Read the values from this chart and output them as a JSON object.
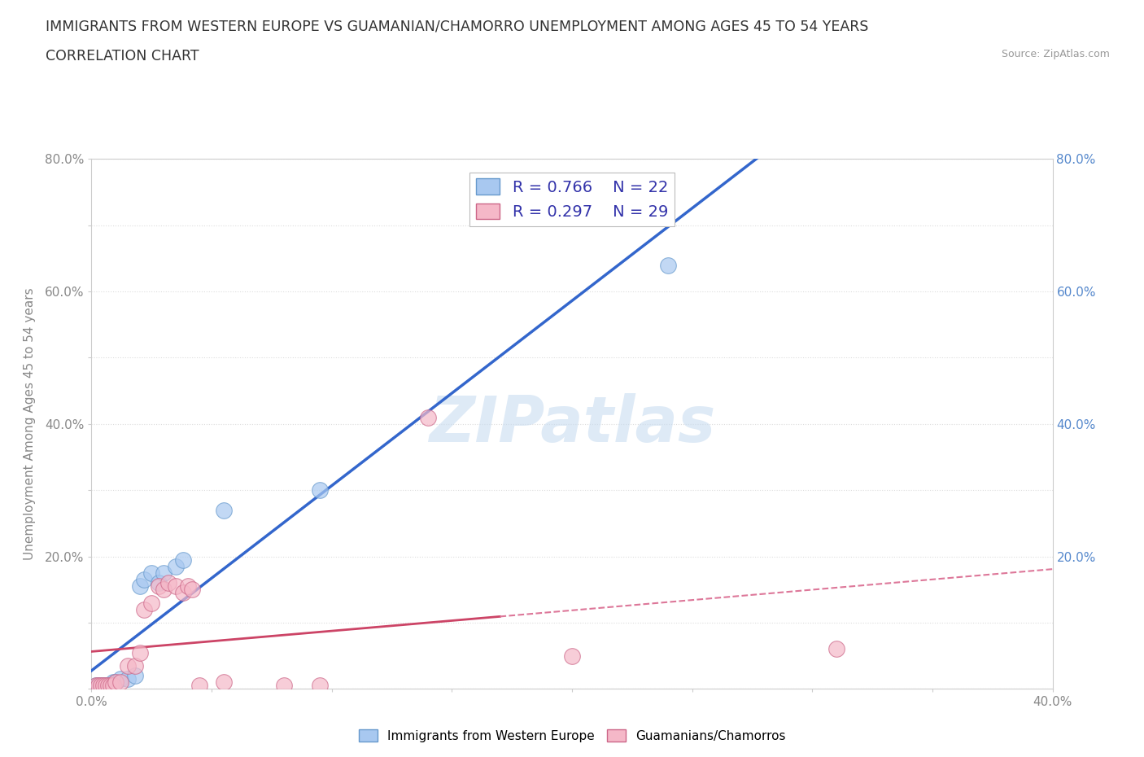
{
  "title_line1": "IMMIGRANTS FROM WESTERN EUROPE VS GUAMANIAN/CHAMORRO UNEMPLOYMENT AMONG AGES 45 TO 54 YEARS",
  "title_line2": "CORRELATION CHART",
  "source_text": "Source: ZipAtlas.com",
  "ylabel": "Unemployment Among Ages 45 to 54 years",
  "xlim": [
    0.0,
    0.4
  ],
  "ylim": [
    0.0,
    0.8
  ],
  "blue_scatter": [
    [
      0.002,
      0.005
    ],
    [
      0.003,
      0.005
    ],
    [
      0.004,
      0.005
    ],
    [
      0.005,
      0.005
    ],
    [
      0.006,
      0.005
    ],
    [
      0.007,
      0.005
    ],
    [
      0.008,
      0.005
    ],
    [
      0.009,
      0.01
    ],
    [
      0.01,
      0.01
    ],
    [
      0.012,
      0.015
    ],
    [
      0.015,
      0.015
    ],
    [
      0.018,
      0.02
    ],
    [
      0.02,
      0.155
    ],
    [
      0.022,
      0.165
    ],
    [
      0.025,
      0.175
    ],
    [
      0.028,
      0.16
    ],
    [
      0.03,
      0.175
    ],
    [
      0.035,
      0.185
    ],
    [
      0.038,
      0.195
    ],
    [
      0.055,
      0.27
    ],
    [
      0.095,
      0.3
    ],
    [
      0.24,
      0.64
    ]
  ],
  "pink_scatter": [
    [
      0.002,
      0.005
    ],
    [
      0.003,
      0.005
    ],
    [
      0.004,
      0.005
    ],
    [
      0.005,
      0.005
    ],
    [
      0.006,
      0.005
    ],
    [
      0.007,
      0.005
    ],
    [
      0.008,
      0.005
    ],
    [
      0.009,
      0.005
    ],
    [
      0.01,
      0.01
    ],
    [
      0.012,
      0.01
    ],
    [
      0.015,
      0.035
    ],
    [
      0.018,
      0.035
    ],
    [
      0.02,
      0.055
    ],
    [
      0.022,
      0.12
    ],
    [
      0.025,
      0.13
    ],
    [
      0.028,
      0.155
    ],
    [
      0.03,
      0.15
    ],
    [
      0.032,
      0.16
    ],
    [
      0.035,
      0.155
    ],
    [
      0.038,
      0.145
    ],
    [
      0.04,
      0.155
    ],
    [
      0.042,
      0.15
    ],
    [
      0.045,
      0.005
    ],
    [
      0.055,
      0.01
    ],
    [
      0.08,
      0.005
    ],
    [
      0.095,
      0.005
    ],
    [
      0.14,
      0.41
    ],
    [
      0.2,
      0.05
    ],
    [
      0.31,
      0.06
    ]
  ],
  "blue_R": 0.766,
  "blue_N": 22,
  "pink_R": 0.297,
  "pink_N": 29,
  "blue_scatter_color": "#A8C8F0",
  "blue_scatter_edge": "#6699CC",
  "pink_scatter_color": "#F5B8C8",
  "pink_scatter_edge": "#CC6688",
  "blue_line_color": "#3366CC",
  "pink_line_color": "#CC4466",
  "pink_dash_color": "#DD7799",
  "legend_text_color": "#3333AA",
  "watermark_color": "#C8DCF0",
  "background_color": "#ffffff",
  "grid_color": "#DDDDDD",
  "right_tick_color": "#5588CC",
  "left_tick_color": "#888888",
  "title_color": "#333333",
  "source_color": "#999999"
}
